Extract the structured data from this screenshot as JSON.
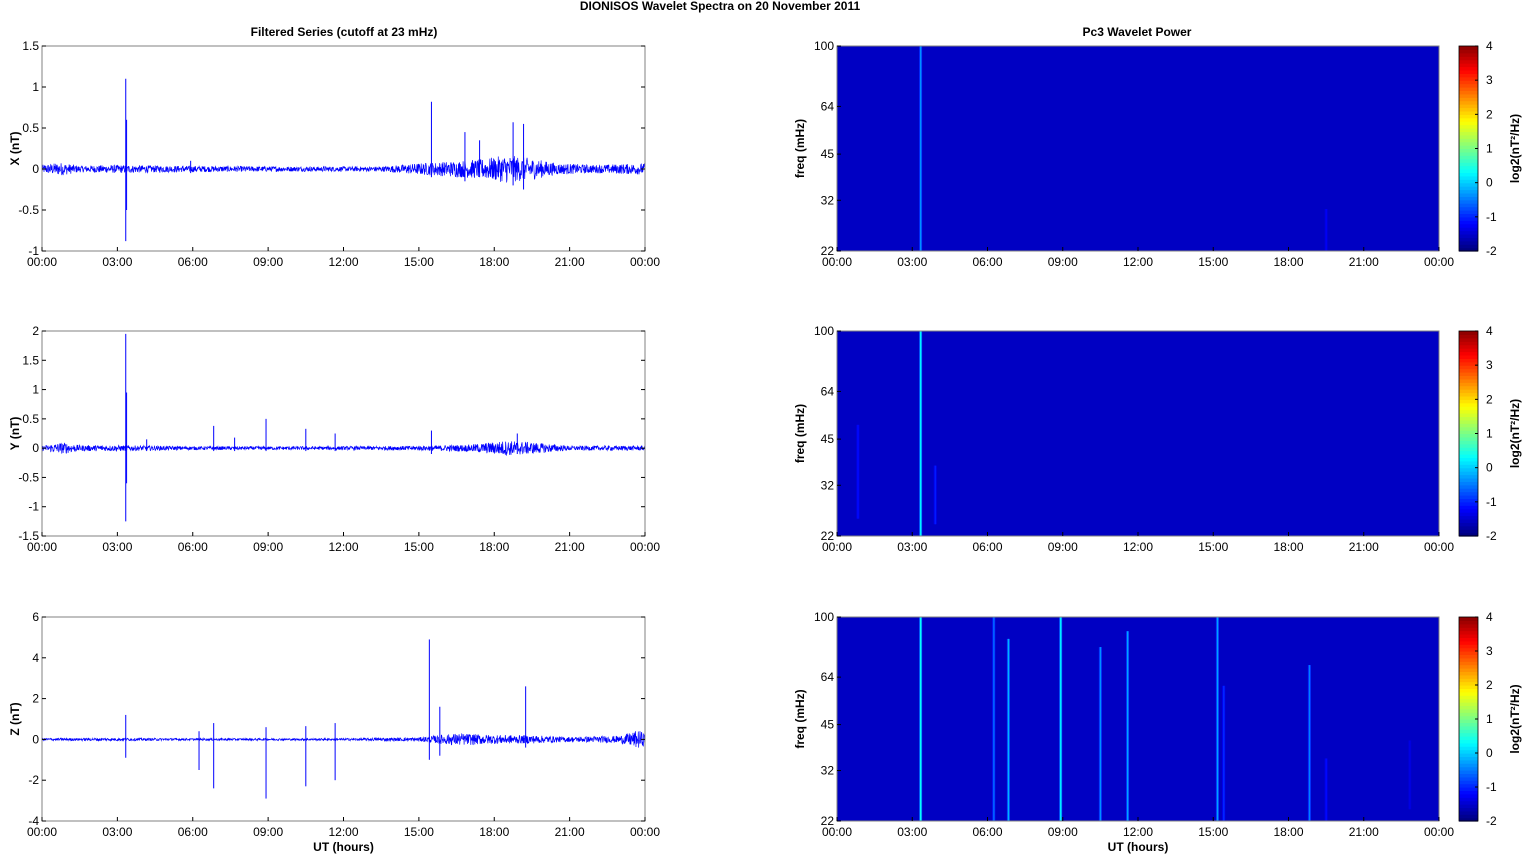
{
  "figure_title": "DIONISOS Wavelet Spectra on 20 November  2011",
  "left_column_title": "Filtered Series (cutoff at 23 mHz)",
  "right_column_title": "Pc3 Wavelet Power",
  "colors": {
    "trace": "#0000ff",
    "spectrogram_background": "#00008f",
    "axes": "#000000"
  },
  "chart_data": [
    {
      "type": "line",
      "title": "Filtered Series (cutoff at 23 mHz)",
      "xlabel": "",
      "ylabel": "X (nT)",
      "xlim": [
        "00:00",
        "24:00"
      ],
      "ylim": [
        -1,
        1.5
      ],
      "xticks": [
        "00:00",
        "03:00",
        "06:00",
        "09:00",
        "12:00",
        "15:00",
        "18:00",
        "21:00",
        "00:00"
      ],
      "yticks": [
        -1,
        -0.5,
        0,
        0.5,
        1,
        1.5
      ],
      "series": [
        {
          "baseline": 0,
          "envelope": [
            {
              "t": "00:00",
              "amp": 0.05
            },
            {
              "t": "00:45",
              "amp": 0.08
            },
            {
              "t": "01:30",
              "amp": 0.04
            },
            {
              "t": "03:00",
              "amp": 0.05
            },
            {
              "t": "05:00",
              "amp": 0.04
            },
            {
              "t": "10:00",
              "amp": 0.03
            },
            {
              "t": "13:30",
              "amp": 0.03
            },
            {
              "t": "15:00",
              "amp": 0.07
            },
            {
              "t": "16:30",
              "amp": 0.1
            },
            {
              "t": "17:30",
              "amp": 0.12
            },
            {
              "t": "18:30",
              "amp": 0.17
            },
            {
              "t": "19:30",
              "amp": 0.13
            },
            {
              "t": "20:30",
              "amp": 0.07
            },
            {
              "t": "22:00",
              "amp": 0.05
            },
            {
              "t": "24:00",
              "amp": 0.07
            }
          ],
          "spikes": [
            {
              "t": "03:20",
              "max": 1.1,
              "min": -0.88
            },
            {
              "t": "03:22",
              "max": 0.6,
              "min": -0.5
            },
            {
              "t": "05:55",
              "max": 0.1,
              "min": -0.05
            },
            {
              "t": "15:30",
              "max": 0.82,
              "min": -0.1
            },
            {
              "t": "16:50",
              "max": 0.45,
              "min": -0.15
            },
            {
              "t": "17:25",
              "max": 0.35,
              "min": -0.1
            },
            {
              "t": "18:45",
              "max": 0.57,
              "min": -0.2
            },
            {
              "t": "19:10",
              "max": 0.55,
              "min": -0.25
            }
          ]
        }
      ]
    },
    {
      "type": "line",
      "xlabel": "",
      "ylabel": "Y (nT)",
      "xlim": [
        "00:00",
        "24:00"
      ],
      "ylim": [
        -1.5,
        2
      ],
      "xticks": [
        "00:00",
        "03:00",
        "06:00",
        "09:00",
        "12:00",
        "15:00",
        "18:00",
        "21:00",
        "00:00"
      ],
      "yticks": [
        -1.5,
        -1,
        -0.5,
        0,
        0.5,
        1,
        1.5,
        2
      ],
      "series": [
        {
          "baseline": 0,
          "envelope": [
            {
              "t": "00:00",
              "amp": 0.04
            },
            {
              "t": "00:50",
              "amp": 0.1
            },
            {
              "t": "01:30",
              "amp": 0.05
            },
            {
              "t": "03:00",
              "amp": 0.05
            },
            {
              "t": "06:00",
              "amp": 0.03
            },
            {
              "t": "12:00",
              "amp": 0.03
            },
            {
              "t": "15:00",
              "amp": 0.04
            },
            {
              "t": "17:00",
              "amp": 0.06
            },
            {
              "t": "18:30",
              "amp": 0.13
            },
            {
              "t": "19:30",
              "amp": 0.1
            },
            {
              "t": "21:00",
              "amp": 0.04
            },
            {
              "t": "24:00",
              "amp": 0.04
            }
          ],
          "spikes": [
            {
              "t": "03:20",
              "max": 1.95,
              "min": -1.25
            },
            {
              "t": "03:22",
              "max": 0.95,
              "min": -0.6
            },
            {
              "t": "04:10",
              "max": 0.15,
              "min": -0.05
            },
            {
              "t": "06:50",
              "max": 0.38,
              "min": -0.05
            },
            {
              "t": "07:40",
              "max": 0.18,
              "min": -0.05
            },
            {
              "t": "08:55",
              "max": 0.5,
              "min": -0.05
            },
            {
              "t": "10:30",
              "max": 0.33,
              "min": -0.05
            },
            {
              "t": "11:40",
              "max": 0.25,
              "min": -0.05
            },
            {
              "t": "15:30",
              "max": 0.3,
              "min": -0.1
            },
            {
              "t": "18:55",
              "max": 0.25,
              "min": -0.1
            }
          ]
        }
      ]
    },
    {
      "type": "line",
      "xlabel": "UT (hours)",
      "ylabel": "Z (nT)",
      "xlim": [
        "00:00",
        "24:00"
      ],
      "ylim": [
        -4,
        6
      ],
      "xticks": [
        "00:00",
        "03:00",
        "06:00",
        "09:00",
        "12:00",
        "15:00",
        "18:00",
        "21:00",
        "00:00"
      ],
      "yticks": [
        -4,
        -2,
        0,
        2,
        4,
        6
      ],
      "series": [
        {
          "baseline": 0,
          "envelope": [
            {
              "t": "00:00",
              "amp": 0.06
            },
            {
              "t": "03:00",
              "amp": 0.07
            },
            {
              "t": "06:00",
              "amp": 0.05
            },
            {
              "t": "12:00",
              "amp": 0.05
            },
            {
              "t": "15:00",
              "amp": 0.1
            },
            {
              "t": "16:30",
              "amp": 0.3
            },
            {
              "t": "18:00",
              "amp": 0.22
            },
            {
              "t": "19:30",
              "amp": 0.2
            },
            {
              "t": "21:00",
              "amp": 0.12
            },
            {
              "t": "23:00",
              "amp": 0.18
            },
            {
              "t": "23:45",
              "amp": 0.45
            },
            {
              "t": "24:00",
              "amp": 0.3
            }
          ],
          "spikes": [
            {
              "t": "03:20",
              "max": 1.2,
              "min": -0.9
            },
            {
              "t": "06:15",
              "max": 0.4,
              "min": -1.5
            },
            {
              "t": "06:50",
              "max": 0.8,
              "min": -2.4
            },
            {
              "t": "08:55",
              "max": 0.6,
              "min": -2.9
            },
            {
              "t": "10:30",
              "max": 0.65,
              "min": -2.3
            },
            {
              "t": "11:40",
              "max": 0.8,
              "min": -2.0
            },
            {
              "t": "15:25",
              "max": 4.9,
              "min": -1.0
            },
            {
              "t": "15:50",
              "max": 1.6,
              "min": -0.8
            },
            {
              "t": "19:15",
              "max": 2.6,
              "min": -0.4
            }
          ]
        }
      ]
    },
    {
      "type": "heatmap",
      "title": "Pc3 Wavelet Power",
      "xlabel": "",
      "ylabel": "freq (mHz)",
      "xlim": [
        "00:00",
        "24:00"
      ],
      "ylim": [
        22,
        100
      ],
      "yscale": "log",
      "xticks": [
        "00:00",
        "03:00",
        "06:00",
        "09:00",
        "12:00",
        "15:00",
        "18:00",
        "21:00",
        "00:00"
      ],
      "yticks": [
        22,
        32,
        45,
        64,
        100
      ],
      "colorbar": {
        "label": "log2(nT²/Hz)",
        "range": [
          -2,
          4
        ],
        "ticks": [
          -2,
          -1,
          0,
          1,
          2,
          3,
          4
        ]
      },
      "background_value": -1.6,
      "features": [
        {
          "t": "03:20",
          "f_low": 22,
          "f_high": 100,
          "value": -0.4
        },
        {
          "t": "19:30",
          "f_low": 22,
          "f_high": 30,
          "value": -1.3
        }
      ]
    },
    {
      "type": "heatmap",
      "xlabel": "",
      "ylabel": "freq (mHz)",
      "xlim": [
        "00:00",
        "24:00"
      ],
      "ylim": [
        22,
        100
      ],
      "yscale": "log",
      "xticks": [
        "00:00",
        "03:00",
        "06:00",
        "09:00",
        "12:00",
        "15:00",
        "18:00",
        "21:00",
        "00:00"
      ],
      "yticks": [
        22,
        32,
        45,
        64,
        100
      ],
      "colorbar": {
        "label": "log2(nT²/Hz)",
        "range": [
          -2,
          4
        ],
        "ticks": [
          -2,
          -1,
          0,
          1,
          2,
          3,
          4
        ]
      },
      "background_value": -1.6,
      "features": [
        {
          "t": "00:50",
          "f_low": 25,
          "f_high": 50,
          "value": -1.2
        },
        {
          "t": "03:20",
          "f_low": 22,
          "f_high": 100,
          "value": 0.2
        },
        {
          "t": "03:55",
          "f_low": 24,
          "f_high": 37,
          "value": -1.1
        }
      ]
    },
    {
      "type": "heatmap",
      "xlabel": "UT (hours)",
      "ylabel": "freq (mHz)",
      "xlim": [
        "00:00",
        "24:00"
      ],
      "ylim": [
        22,
        100
      ],
      "yscale": "log",
      "xticks": [
        "00:00",
        "03:00",
        "06:00",
        "09:00",
        "12:00",
        "15:00",
        "18:00",
        "21:00",
        "00:00"
      ],
      "yticks": [
        22,
        32,
        45,
        64,
        100
      ],
      "colorbar": {
        "label": "log2(nT²/Hz)",
        "range": [
          -2,
          4
        ],
        "ticks": [
          -2,
          -1,
          0,
          1,
          2,
          3,
          4
        ]
      },
      "background_value": -1.6,
      "features": [
        {
          "t": "03:20",
          "f_low": 22,
          "f_high": 100,
          "value": 0.3
        },
        {
          "t": "06:15",
          "f_low": 22,
          "f_high": 100,
          "value": -0.6
        },
        {
          "t": "06:50",
          "f_low": 22,
          "f_high": 85,
          "value": -0.2
        },
        {
          "t": "08:55",
          "f_low": 22,
          "f_high": 100,
          "value": 0.2
        },
        {
          "t": "10:30",
          "f_low": 22,
          "f_high": 80,
          "value": -0.4
        },
        {
          "t": "11:35",
          "f_low": 22,
          "f_high": 90,
          "value": -0.3
        },
        {
          "t": "15:10",
          "f_low": 22,
          "f_high": 100,
          "value": -0.3
        },
        {
          "t": "15:25",
          "f_low": 22,
          "f_high": 60,
          "value": -1.0
        },
        {
          "t": "18:50",
          "f_low": 22,
          "f_high": 70,
          "value": -0.5
        },
        {
          "t": "19:30",
          "f_low": 22,
          "f_high": 35,
          "value": -1.2
        },
        {
          "t": "22:50",
          "f_low": 24,
          "f_high": 40,
          "value": -1.4
        }
      ]
    }
  ]
}
